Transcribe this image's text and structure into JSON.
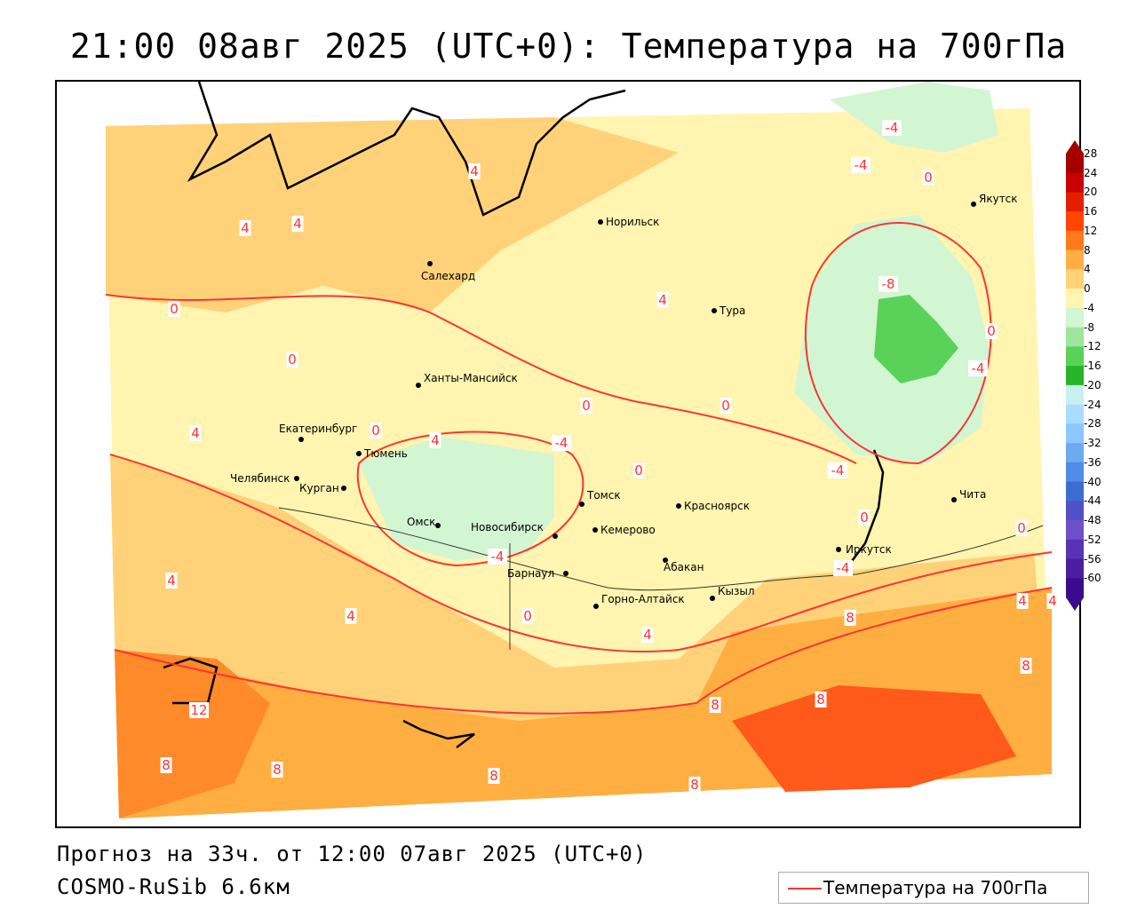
{
  "title": "21:00 08авг 2025 (UTC+0): Температура на 700гПа",
  "footer": {
    "forecast": "Прогноз на 33ч. от 12:00 07авг 2025 (UTC+0)",
    "model": "COSMO-RuSib 6.6км"
  },
  "legend": {
    "line_label": "Температура на 700гПа",
    "line_color": "#ff3333"
  },
  "colorbar": {
    "labels": [
      "28",
      "24",
      "20",
      "16",
      "12",
      "8",
      "4",
      "0",
      "-4",
      "-8",
      "-12",
      "-16",
      "-20",
      "-24",
      "-28",
      "-32",
      "-36",
      "-40",
      "-44",
      "-48",
      "-52",
      "-56",
      "-60"
    ],
    "colors": [
      "#a50000",
      "#c80000",
      "#e61e00",
      "#ff4600",
      "#ff7a1a",
      "#ffae42",
      "#ffd27a",
      "#fff5b0",
      "#d2f5d2",
      "#9ee69e",
      "#5ad25a",
      "#28b428",
      "#c8f0f0",
      "#aadcff",
      "#8cc8ff",
      "#6eaaf0",
      "#508ce6",
      "#3c6ed2",
      "#5050c8",
      "#6e50c8",
      "#5a32b4",
      "#4b1ea0",
      "#3c0a8c"
    ]
  },
  "cities": [
    {
      "name": "Норильск"
    },
    {
      "name": "Якутск"
    },
    {
      "name": "Салехард"
    },
    {
      "name": "Тура"
    },
    {
      "name": "Ханты-Мансийск"
    },
    {
      "name": "Екатеринбург"
    },
    {
      "name": "Тюмень"
    },
    {
      "name": "Челябинск"
    },
    {
      "name": "Курган"
    },
    {
      "name": "Омск"
    },
    {
      "name": "Новосибирск"
    },
    {
      "name": "Томск"
    },
    {
      "name": "Кемерово"
    },
    {
      "name": "Красноярск"
    },
    {
      "name": "Барнаул"
    },
    {
      "name": "Абакан"
    },
    {
      "name": "Горно-Алтайск"
    },
    {
      "name": "Кызыл"
    },
    {
      "name": "Иркутск"
    },
    {
      "name": "Чита"
    }
  ],
  "contour_labels": [
    "-4",
    "-4",
    "0",
    "4",
    "4",
    "4",
    "0",
    "4",
    "0",
    "4",
    "0",
    "4",
    "-8",
    "0",
    "-4",
    "-4",
    "0",
    "0",
    "-4",
    "0",
    "0",
    "-4",
    "4",
    "4",
    "0",
    "4",
    "-4",
    "0",
    "4",
    "8",
    "8",
    "8",
    "12",
    "8",
    "8",
    "8",
    "8",
    "8",
    "4"
  ]
}
